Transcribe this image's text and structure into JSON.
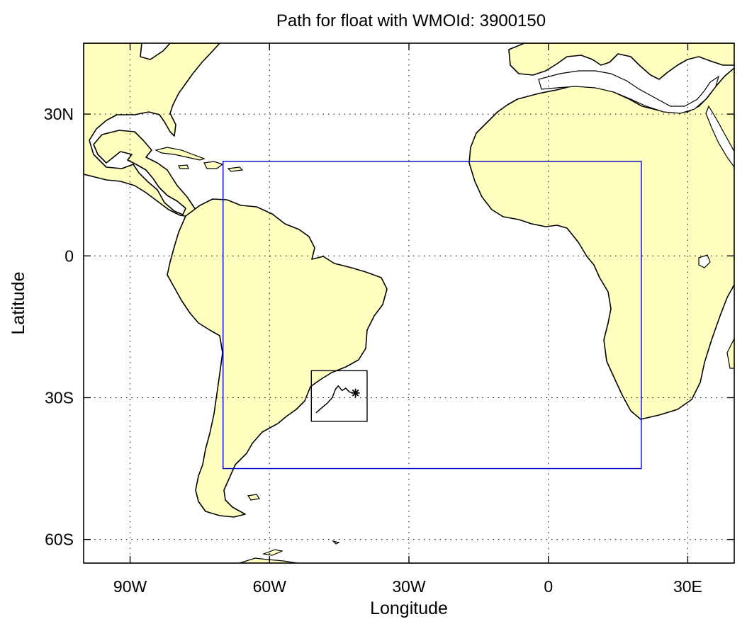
{
  "title": "Path for float with WMOId: 3900150",
  "xlabel": "Longitude",
  "ylabel": "Latitude",
  "map": {
    "lon_range": [
      -100,
      40
    ],
    "lat_range": [
      -65,
      45
    ],
    "land_color": "#ffffc0",
    "ocean_color": "#ffffff",
    "grid": true,
    "x_ticks": [
      {
        "value": -90,
        "label": "90W"
      },
      {
        "value": -60,
        "label": "60W"
      },
      {
        "value": -30,
        "label": "30W"
      },
      {
        "value": 0,
        "label": "0"
      },
      {
        "value": 30,
        "label": "30E"
      }
    ],
    "y_ticks": [
      {
        "value": 30,
        "label": "30N"
      },
      {
        "value": 0,
        "label": "0"
      },
      {
        "value": -30,
        "label": "30S"
      },
      {
        "value": -60,
        "label": "60S"
      }
    ]
  },
  "region_box": {
    "lon": [
      -70,
      20
    ],
    "lat": [
      -45,
      20
    ],
    "color": "#0000cc"
  },
  "float_box": {
    "lon": [
      -51,
      -39
    ],
    "lat": [
      -35,
      -24.3
    ],
    "color": "#000000"
  },
  "float_track": {
    "lon": [
      -50.0,
      -48.8,
      -47.6,
      -46.5,
      -45.8,
      -45.2,
      -44.4,
      -43.6,
      -42.8,
      -42.0
    ],
    "lat": [
      -33.2,
      -32.2,
      -31.2,
      -30.0,
      -28.2,
      -27.5,
      -28.5,
      -28.0,
      -28.8,
      -29.0
    ],
    "last_position": {
      "lon": -41.5,
      "lat": -29.0
    }
  }
}
